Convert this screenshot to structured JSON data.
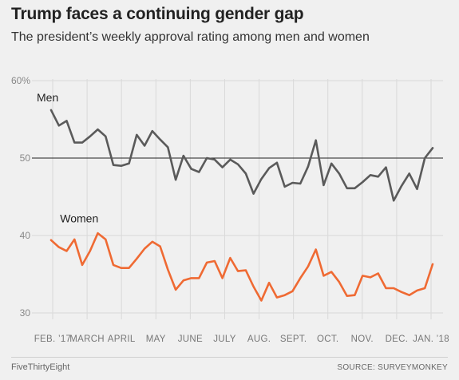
{
  "header": {
    "title": "Trump faces a continuing gender gap",
    "subtitle": "The president’s weekly approval rating among men and women"
  },
  "footer": {
    "brand": "FiveThirtyEight",
    "source": "SOURCE: SURVEYMONKEY"
  },
  "colors": {
    "men": "#5a5a5a",
    "women": "#ef6a33",
    "grid": "#d9d9d9",
    "reference_line": "#222222",
    "background": "#f0f0f0"
  },
  "chart_data": {
    "type": "line",
    "title": "Trump faces a continuing gender gap",
    "subtitle": "The president’s weekly approval rating among men and women",
    "ylim": [
      30,
      60
    ],
    "y_ticks": [
      {
        "value": 60,
        "label": "60%"
      },
      {
        "value": 50,
        "label": "50"
      },
      {
        "value": 40,
        "label": "40"
      },
      {
        "value": 30,
        "label": "30"
      }
    ],
    "reference_line": 50,
    "x_ticks": [
      "FEB. ’17",
      "MARCH",
      "APRIL",
      "MAY",
      "JUNE",
      "JULY",
      "AUG.",
      "SEPT.",
      "OCT.",
      "NOV.",
      "DEC.",
      "JAN. ’18"
    ],
    "grid": true,
    "series": [
      {
        "name": "Men",
        "color": "#5a5a5a",
        "values": [
          56.2,
          54.2,
          54.8,
          52.0,
          52.0,
          52.8,
          53.7,
          52.8,
          49.1,
          49.0,
          49.3,
          53.0,
          51.6,
          53.5,
          52.4,
          51.4,
          47.2,
          50.3,
          48.6,
          48.2,
          50.0,
          49.8,
          48.8,
          49.8,
          49.2,
          48.0,
          45.4,
          47.3,
          48.7,
          49.4,
          46.3,
          46.8,
          46.7,
          48.9,
          52.3,
          46.5,
          49.3,
          48.0,
          46.1,
          46.1,
          46.9,
          47.8,
          47.6,
          48.8,
          44.5,
          46.4,
          48.0,
          46.0,
          50.0,
          51.3
        ],
        "label_position": {
          "x": 0,
          "y": 57.3
        }
      },
      {
        "name": "Women",
        "color": "#ef6a33",
        "values": [
          39.4,
          38.5,
          38.0,
          39.5,
          36.2,
          38.0,
          40.3,
          39.5,
          36.2,
          35.8,
          35.8,
          37.0,
          38.3,
          39.2,
          38.6,
          35.6,
          33.0,
          34.2,
          34.5,
          34.5,
          36.5,
          36.7,
          34.5,
          37.1,
          35.4,
          35.5,
          33.4,
          31.6,
          33.9,
          32.0,
          32.3,
          32.8,
          34.5,
          36.0,
          38.2,
          34.8,
          35.3,
          34.0,
          32.2,
          32.3,
          34.8,
          34.6,
          35.1,
          33.2,
          33.2,
          32.7,
          32.3,
          32.9,
          33.2,
          36.3
        ],
        "label_position": {
          "x": 3,
          "y": 41.7
        }
      }
    ]
  }
}
